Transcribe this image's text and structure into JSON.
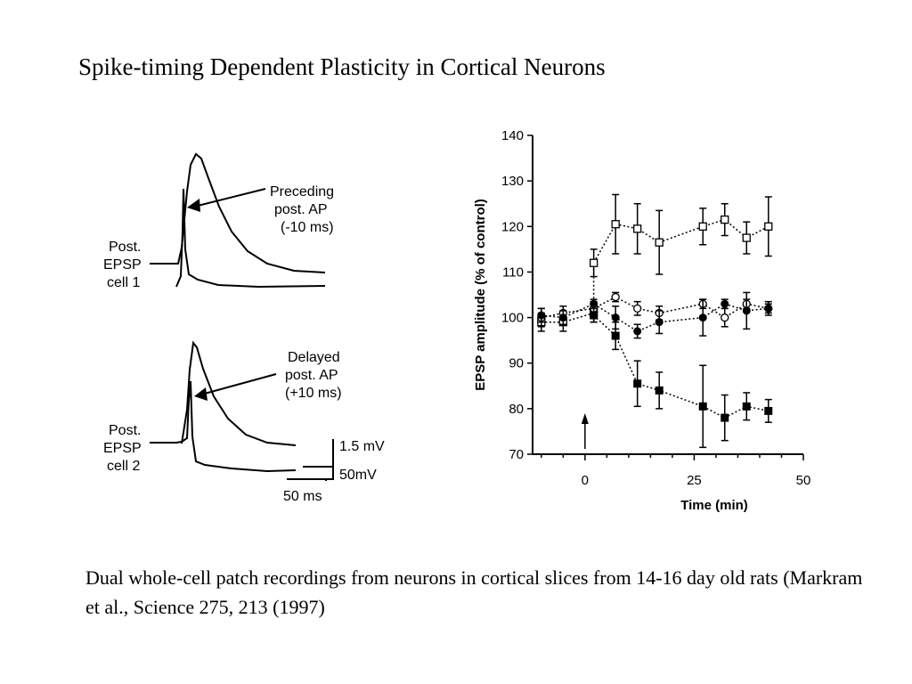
{
  "title": "Spike-timing Dependent Plasticity in Cortical Neurons",
  "caption": "Dual whole-cell patch recordings from neurons in cortical slices from 14-16 day old rats  (Markram et al., Science 275, 213 (1997)",
  "traces": {
    "cell1_label": [
      "Post.",
      "EPSP",
      "cell 1"
    ],
    "cell1_annotation": [
      "Preceding",
      "post. AP",
      "(-10 ms)"
    ],
    "cell2_label": [
      "Post.",
      "EPSP",
      "cell 2"
    ],
    "cell2_annotation": [
      "Delayed",
      "post. AP",
      "(+10 ms)"
    ],
    "scale_voltage_1": "1.5 mV",
    "scale_voltage_2": "50mV",
    "scale_time": "50 ms"
  },
  "chart_data": {
    "type": "scatter",
    "xlabel": "Time (min)",
    "ylabel": "EPSP amplitude (% of control)",
    "xlim": [
      -12,
      50
    ],
    "ylim": [
      70,
      140
    ],
    "xticks": [
      0,
      25,
      50
    ],
    "yticks": [
      70,
      80,
      90,
      100,
      110,
      120,
      130,
      140
    ],
    "annotation": "arrow at time 0",
    "series": [
      {
        "marker": "open-square",
        "points": [
          {
            "x": -10,
            "y": 99,
            "err": 2
          },
          {
            "x": -5,
            "y": 99,
            "err": 2
          },
          {
            "x": 2,
            "y": 101,
            "err": 2
          },
          {
            "x": 2,
            "y": 112,
            "err": 3
          },
          {
            "x": 7,
            "y": 120.5,
            "err": 6.5
          },
          {
            "x": 12,
            "y": 119.5,
            "err": 5.5
          },
          {
            "x": 17,
            "y": 116.5,
            "err": 7
          },
          {
            "x": 27,
            "y": 120,
            "err": 4
          },
          {
            "x": 32,
            "y": 121.5,
            "err": 3.5
          },
          {
            "x": 37,
            "y": 117.5,
            "err": 3.5
          },
          {
            "x": 42,
            "y": 120,
            "err": 6.5
          }
        ]
      },
      {
        "marker": "open-circle",
        "points": [
          {
            "x": -10,
            "y": 100,
            "err": 2
          },
          {
            "x": -5,
            "y": 101,
            "err": 1.5
          },
          {
            "x": 2,
            "y": 102,
            "err": 1.5
          },
          {
            "x": 7,
            "y": 104.5,
            "err": 1
          },
          {
            "x": 12,
            "y": 102,
            "err": 1.5
          },
          {
            "x": 17,
            "y": 101,
            "err": 1.5
          },
          {
            "x": 27,
            "y": 103,
            "err": 1
          },
          {
            "x": 32,
            "y": 100,
            "err": 2
          },
          {
            "x": 37,
            "y": 103,
            "err": 1
          },
          {
            "x": 42,
            "y": 102,
            "err": 1
          }
        ]
      },
      {
        "marker": "filled-circle",
        "points": [
          {
            "x": -10,
            "y": 100.5,
            "err": 1.5
          },
          {
            "x": -5,
            "y": 100,
            "err": 1.5
          },
          {
            "x": 2,
            "y": 103,
            "err": 1
          },
          {
            "x": 7,
            "y": 100,
            "err": 2.5
          },
          {
            "x": 12,
            "y": 97,
            "err": 1.5
          },
          {
            "x": 17,
            "y": 99,
            "err": 2.5
          },
          {
            "x": 27,
            "y": 100,
            "err": 4
          },
          {
            "x": 32,
            "y": 103,
            "err": 1
          },
          {
            "x": 37,
            "y": 101.5,
            "err": 4
          },
          {
            "x": 42,
            "y": 102,
            "err": 1.5
          }
        ]
      },
      {
        "marker": "filled-square",
        "points": [
          {
            "x": 2,
            "y": 100.5,
            "err": 1.5
          },
          {
            "x": 7,
            "y": 96,
            "err": 3
          },
          {
            "x": 12,
            "y": 85.5,
            "err": 5
          },
          {
            "x": 17,
            "y": 84,
            "err": 4
          },
          {
            "x": 27,
            "y": 80.5,
            "err": 9
          },
          {
            "x": 32,
            "y": 78,
            "err": 5
          },
          {
            "x": 37,
            "y": 80.5,
            "err": 3
          },
          {
            "x": 42,
            "y": 79.5,
            "err": 2.5
          }
        ]
      }
    ]
  }
}
